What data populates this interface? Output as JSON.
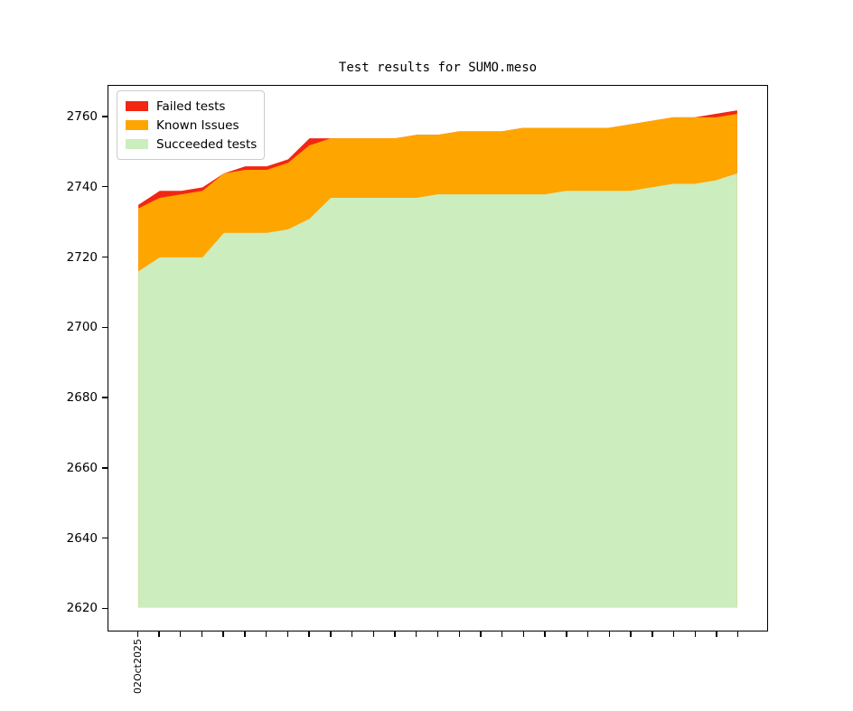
{
  "title": "Test results for SUMO.meso",
  "x_axis": {
    "first_tick_label": "02Oct2025",
    "tick_count": 29
  },
  "y_axis": {
    "tick_labels": [
      "2620",
      "2640",
      "2660",
      "2680",
      "2700",
      "2720",
      "2740",
      "2760"
    ]
  },
  "legend": {
    "entries": [
      {
        "label": "Failed tests",
        "color": "#f22613"
      },
      {
        "label": "Known Issues",
        "color": "#ffa500"
      },
      {
        "label": "Succeeded tests",
        "color": "#ccedbe"
      }
    ]
  },
  "chart_data": {
    "type": "area",
    "stacked": true,
    "title": "Test results for SUMO.meso",
    "xlabel": "",
    "ylabel": "",
    "grid": false,
    "legend_position": "upper left",
    "x": [
      0,
      1,
      2,
      3,
      4,
      5,
      6,
      7,
      8,
      9,
      10,
      11,
      12,
      13,
      14,
      15,
      16,
      17,
      18,
      19,
      20,
      21,
      22,
      23,
      24,
      25,
      26,
      27,
      28
    ],
    "x_tick_labels_shown": {
      "0": "02Oct2025"
    },
    "y_ticks": [
      2620,
      2640,
      2660,
      2680,
      2700,
      2720,
      2740,
      2760
    ],
    "ylim": [
      2613.4,
      2769.0
    ],
    "xlim": [
      -1.4,
      29.4
    ],
    "fill_baseline": 2620,
    "series": [
      {
        "name": "Succeeded tests",
        "color": "#ccedbe",
        "absolute": true,
        "values": [
          2716,
          2720,
          2720,
          2720,
          2727,
          2727,
          2727,
          2728,
          2731,
          2737,
          2737,
          2737,
          2737,
          2737,
          2738,
          2738,
          2738,
          2738,
          2738,
          2738,
          2739,
          2739,
          2739,
          2739,
          2740,
          2741,
          2741,
          2742,
          2744
        ]
      },
      {
        "name": "Known Issues",
        "color": "#ffa500",
        "absolute": false,
        "values": [
          18,
          17,
          18,
          19,
          17,
          18,
          18,
          19,
          21,
          17,
          17,
          17,
          17,
          18,
          17,
          18,
          18,
          18,
          19,
          19,
          18,
          18,
          18,
          19,
          19,
          19,
          19,
          18,
          17
        ]
      },
      {
        "name": "Failed tests",
        "color": "#f22613",
        "absolute": false,
        "values": [
          1,
          2,
          1,
          1,
          0,
          1,
          1,
          1,
          2,
          0,
          0,
          0,
          0,
          0,
          0,
          0,
          0,
          0,
          0,
          0,
          0,
          0,
          0,
          0,
          0,
          0,
          0,
          1,
          1
        ]
      }
    ]
  }
}
